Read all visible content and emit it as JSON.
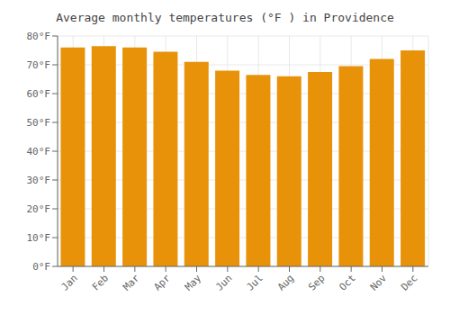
{
  "chart_data": {
    "type": "bar",
    "title": "Average monthly temperatures (°F ) in Providence",
    "categories": [
      "Jan",
      "Feb",
      "Mar",
      "Apr",
      "May",
      "Jun",
      "Jul",
      "Aug",
      "Sep",
      "Oct",
      "Nov",
      "Dec"
    ],
    "values": [
      76.0,
      76.5,
      76.0,
      74.5,
      71.0,
      68.0,
      66.5,
      66.0,
      67.5,
      69.5,
      72.0,
      75.0
    ],
    "color": "#E8920A",
    "ylim": [
      0,
      80
    ],
    "yticks": [
      {
        "value": 0,
        "label": "0°F"
      },
      {
        "value": 10,
        "label": "10°F"
      },
      {
        "value": 20,
        "label": "20°F"
      },
      {
        "value": 30,
        "label": "30°F"
      },
      {
        "value": 40,
        "label": "40°F"
      },
      {
        "value": 50,
        "label": "50°F"
      },
      {
        "value": 60,
        "label": "60°F"
      },
      {
        "value": 70,
        "label": "70°F"
      },
      {
        "value": 80,
        "label": "80°F"
      }
    ],
    "grid": true
  }
}
